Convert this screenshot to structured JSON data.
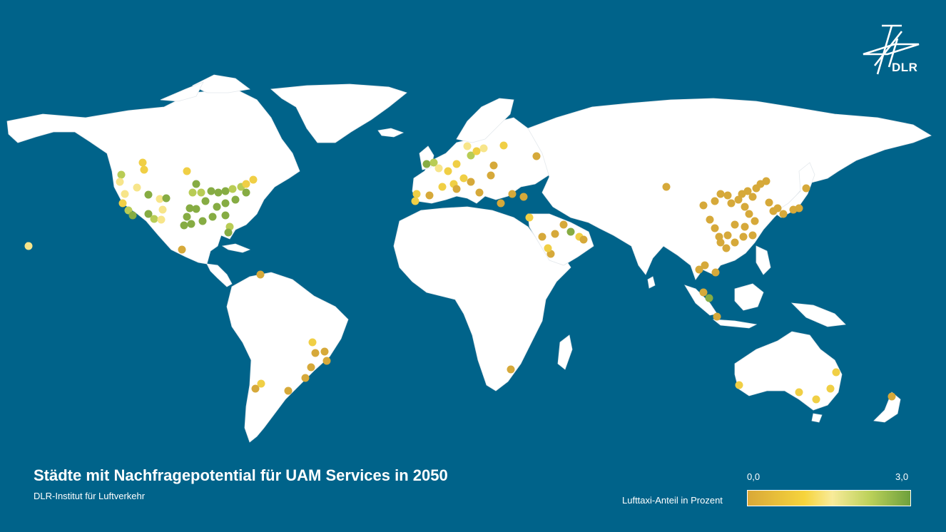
{
  "title": "Städte mit Nachfragepotential für UAM Services in 2050",
  "subtitle": "DLR-Institut für Luftverkehr",
  "logo": {
    "text": "DLR",
    "icon": "dlr-logo-icon"
  },
  "legend": {
    "label": "Lufttaxi-Anteil in Prozent",
    "min_label": "0,0",
    "max_label": "3,0",
    "min": 0.0,
    "max": 3.0,
    "color_stops": [
      "#d9a838",
      "#f6d43c",
      "#f8eb9a",
      "#bcd15a",
      "#6ea03c"
    ]
  },
  "colors": {
    "ocean": "#00638a",
    "land": "#ffffff"
  }
}
